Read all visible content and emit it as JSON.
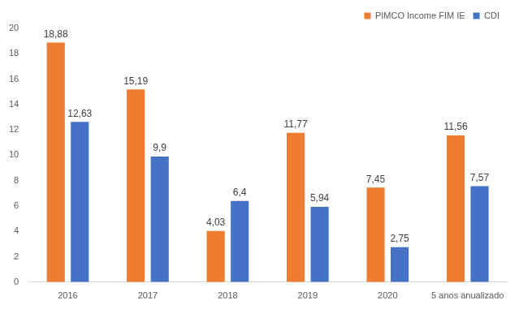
{
  "chart_data": {
    "type": "bar",
    "categories": [
      "2016",
      "2017",
      "2018",
      "2019",
      "2020",
      "5 anos anualizado"
    ],
    "series": [
      {
        "name": "PIMCO Income FIM IE",
        "color": "#ed7d31",
        "values": [
          18.88,
          15.19,
          4.03,
          11.77,
          7.45,
          11.56
        ],
        "value_labels": [
          "18,88",
          "15,19",
          "4,03",
          "11,77",
          "7,45",
          "11,56"
        ]
      },
      {
        "name": "CDI",
        "color": "#4472c4",
        "values": [
          12.63,
          9.9,
          6.4,
          5.94,
          2.75,
          7.57
        ],
        "value_labels": [
          "12,63",
          "9,9",
          "6,4",
          "5,94",
          "2,75",
          "7,57"
        ]
      }
    ],
    "ylim": [
      0,
      20
    ],
    "yticks": [
      0,
      2,
      4,
      6,
      8,
      10,
      12,
      14,
      16,
      18,
      20
    ],
    "grid": false,
    "legend": "top-right",
    "data_labels": true
  }
}
